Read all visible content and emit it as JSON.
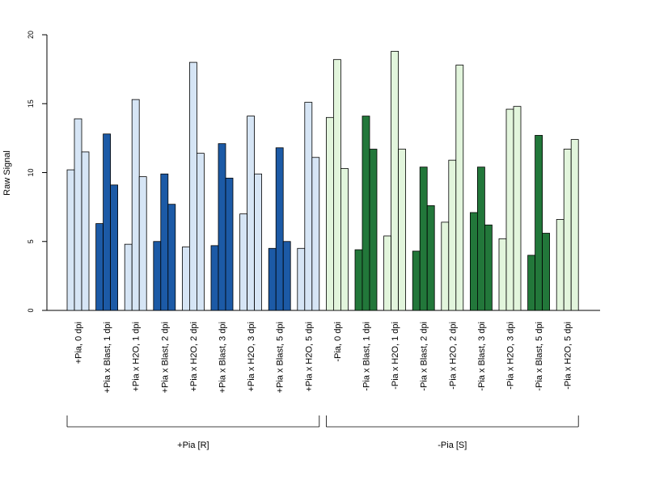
{
  "chart_data": {
    "type": "bar",
    "ylabel": "Raw Signal",
    "ylim": [
      0,
      20
    ],
    "yticks": [
      0,
      5,
      10,
      15,
      20
    ],
    "bars_per_category": 3,
    "categories": [
      "+Pia, 0 dpi",
      "+Pia x Blast, 1 dpi",
      "+Pia x H2O, 1 dpi",
      "+Pia x Blast, 2 dpi",
      "+Pia x H2O, 2 dpi",
      "+Pia x Blast, 3 dpi",
      "+Pia x H2O, 3 dpi",
      "+Pia x Blast, 5 dpi",
      "+Pia x H2O, 5 dpi",
      "-Pia, 0 dpi",
      "-Pia x Blast, 1 dpi",
      "-Pia x H2O, 1 dpi",
      "-Pia x Blast, 2 dpi",
      "-Pia x H2O, 2 dpi",
      "-Pia x Blast, 3 dpi",
      "-Pia x H2O, 3 dpi",
      "-Pia x Blast, 5 dpi",
      "-Pia x H2O, 5 dpi"
    ],
    "values": [
      [
        10.2,
        13.9,
        11.5
      ],
      [
        6.3,
        12.8,
        9.1
      ],
      [
        4.8,
        15.3,
        9.7
      ],
      [
        5.0,
        9.9,
        7.7
      ],
      [
        4.6,
        18.0,
        11.4
      ],
      [
        4.7,
        12.1,
        9.6
      ],
      [
        7.0,
        14.1,
        9.9
      ],
      [
        4.5,
        11.8,
        5.0
      ],
      [
        4.5,
        15.1,
        11.1
      ],
      [
        14.0,
        18.2,
        10.3
      ],
      [
        4.4,
        14.1,
        11.7
      ],
      [
        5.4,
        18.8,
        11.7
      ],
      [
        4.3,
        10.4,
        7.6
      ],
      [
        6.4,
        10.9,
        17.8
      ],
      [
        7.1,
        10.4,
        6.2
      ],
      [
        5.2,
        14.6,
        14.8
      ],
      [
        4.0,
        12.7,
        5.6
      ],
      [
        6.6,
        11.7,
        12.4
      ]
    ],
    "fill_colors": [
      "#d6e5f5",
      "#1c5aa6",
      "#d6e5f5",
      "#1c5aa6",
      "#d6e5f5",
      "#1c5aa6",
      "#d6e5f5",
      "#1c5aa6",
      "#d6e5f5",
      "#e2f5dc",
      "#22773a",
      "#e2f5dc",
      "#22773a",
      "#e2f5dc",
      "#22773a",
      "#e2f5dc",
      "#22773a",
      "#e2f5dc"
    ],
    "groups": [
      {
        "label": "+Pia [R]",
        "from": 0,
        "to": 8
      },
      {
        "label": "-Pia [S]",
        "from": 9,
        "to": 17
      }
    ]
  }
}
